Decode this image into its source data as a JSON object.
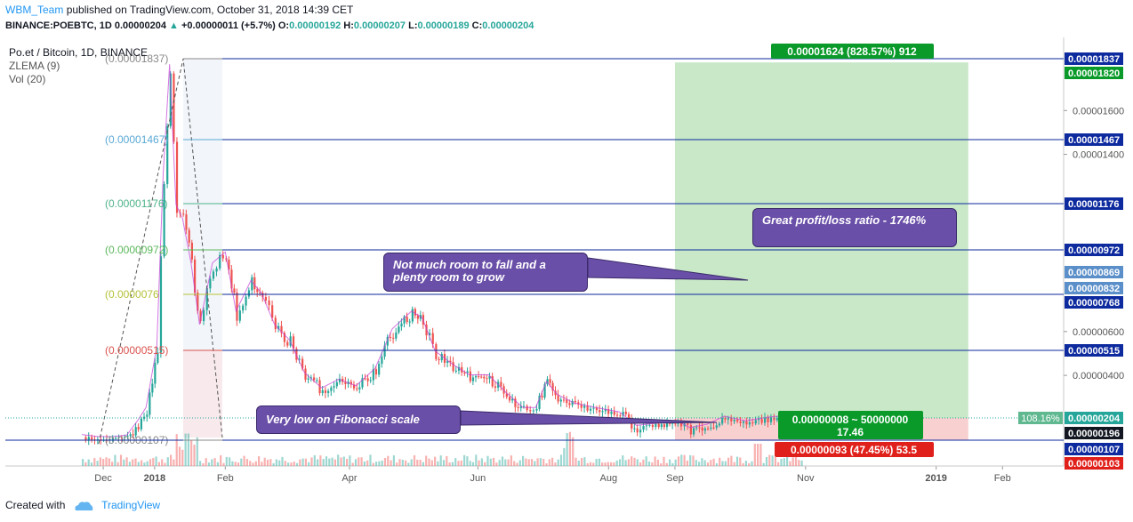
{
  "header": {
    "author": "WBM_Team",
    "published": "published on TradingView.com, October 31, 2018 14:39 CET",
    "symbol": "BINANCE:POEBTC, 1D",
    "last": "0.00000204",
    "change": "+0.00000011 (+5.7%)",
    "o_label": "O:",
    "o_value": "0.00000192",
    "h_label": "H:",
    "h_value": "0.00000207",
    "l_label": "L:",
    "l_value": "0.00000189",
    "c_label": "C:",
    "c_value": "0.00000204"
  },
  "legend": {
    "title": "Po.et / Bitcoin, 1D, BINANCE",
    "ind1": "ZLEMA (9)",
    "ind2": "Vol (20)"
  },
  "footer": {
    "created_with": "Created with",
    "brand": "TradingView"
  },
  "notes": {
    "n1": "Not much room to fall and a plenty room to grow",
    "n2": "Great profit/loss ratio - 1746%",
    "n3": "Very low on Fibonacci scale"
  },
  "position": {
    "target_label": "0.00001624 (828.57%) 912",
    "center_label_1": "0.00000008 ~ 50000000",
    "center_label_2": "17.46",
    "stop_label": "0.00000093 (47.45%) 53.5",
    "pct_label": "108.16%"
  },
  "colors": {
    "up": "#26a69a",
    "down": "#ef5350",
    "fib_line": "#0d2a9e",
    "profit_zone": "#c8e8c8",
    "loss_zone": "#f8d0d0",
    "note_bg": "#6a4fa8",
    "tag_blue": "#0d2a9e",
    "tag_green": "#0a9a2a",
    "tag_red": "#e0201a"
  },
  "chart_data": {
    "type": "candlestick",
    "title": "Po.et / Bitcoin, 1D, BINANCE",
    "x_ticks": [
      "Dec",
      "2018",
      "Feb",
      "Apr",
      "Jun",
      "Aug",
      "Sep",
      "Nov",
      "2019",
      "Feb"
    ],
    "y_ticks": [
      "0.00001600",
      "0.00001400",
      "0.00000600",
      "0.00000400"
    ],
    "y_range": [
      8.6e-07,
      1.98e-05
    ],
    "fib_levels": [
      {
        "label": "(0.00001837)",
        "value": 1.837e-05,
        "color": "#888888"
      },
      {
        "label": "(0.00001467)",
        "value": 1.467e-05,
        "color": "#5aa9d6"
      },
      {
        "label": "(0.00001176)",
        "value": 1.176e-05,
        "color": "#4fb38a"
      },
      {
        "label": "(0.00000972)",
        "value": 9.72e-06,
        "color": "#5cb85c"
      },
      {
        "label": "(0.0000076",
        "value": 7.68e-06,
        "color": "#b5c23a"
      },
      {
        "label": "(0.00000515)",
        "value": 5.15e-06,
        "color": "#d9534f"
      },
      {
        "label": "(0.00000107)",
        "value": 1.07e-06,
        "color": "#888888"
      }
    ],
    "price_tags": [
      {
        "label": "0.00001837",
        "value": 1.837e-05,
        "color": "#0d2a9e"
      },
      {
        "label": "0.00001820",
        "value": 1.82e-05,
        "color": "#0a9a2a"
      },
      {
        "label": "0.00001467",
        "value": 1.467e-05,
        "color": "#0d2a9e"
      },
      {
        "label": "0.00001176",
        "value": 1.176e-05,
        "color": "#0d2a9e"
      },
      {
        "label": "0.00000972",
        "value": 9.72e-06,
        "color": "#0d2a9e"
      },
      {
        "label": "0.00000869",
        "value": 8.69e-06,
        "color": "#5b8fc9"
      },
      {
        "label": "0.00000832",
        "value": 8.32e-06,
        "color": "#5b8fc9"
      },
      {
        "label": "0.00000768",
        "value": 7.68e-06,
        "color": "#0d2a9e"
      },
      {
        "label": "0.00000515",
        "value": 5.15e-06,
        "color": "#0d2a9e"
      },
      {
        "label": "0.00000204",
        "value": 2.04e-06,
        "color": "#26a69a"
      },
      {
        "label": "0.00000196",
        "value": 1.96e-06,
        "color": "#131722"
      },
      {
        "label": "0.00000107",
        "value": 1.07e-06,
        "color": "#0d2a9e"
      },
      {
        "label": "0.00000103",
        "value": 1.03e-06,
        "color": "#e0201a"
      }
    ],
    "price_path": [
      [
        "2017-11-28",
        1.2e-06
      ],
      [
        "2017-12-05",
        1.12e-06
      ],
      [
        "2017-12-12",
        1.1e-06
      ],
      [
        "2017-12-19",
        1.18e-06
      ],
      [
        "2017-12-24",
        1.8e-06
      ],
      [
        "2017-12-28",
        2.4e-06
      ],
      [
        "2018-01-02",
        5.2e-06
      ],
      [
        "2018-01-05",
        1.3e-05
      ],
      [
        "2018-01-08",
        1.8e-05
      ],
      [
        "2018-01-11",
        1.16e-05
      ],
      [
        "2018-01-14",
        1.1e-05
      ],
      [
        "2018-01-18",
        9e-06
      ],
      [
        "2018-01-22",
        6.2e-06
      ],
      [
        "2018-01-28",
        9e-06
      ],
      [
        "2018-02-03",
        9.5e-06
      ],
      [
        "2018-02-08",
        6.8e-06
      ],
      [
        "2018-02-15",
        8.2e-06
      ],
      [
        "2018-02-20",
        7.6e-06
      ],
      [
        "2018-02-26",
        6.2e-06
      ],
      [
        "2018-03-05",
        5.5e-06
      ],
      [
        "2018-03-12",
        4e-06
      ],
      [
        "2018-03-20",
        3.3e-06
      ],
      [
        "2018-03-28",
        3.7e-06
      ],
      [
        "2018-04-05",
        3.4e-06
      ],
      [
        "2018-04-14",
        4.2e-06
      ],
      [
        "2018-04-22",
        6e-06
      ],
      [
        "2018-05-01",
        6.8e-06
      ],
      [
        "2018-05-06",
        6.5e-06
      ],
      [
        "2018-05-12",
        5e-06
      ],
      [
        "2018-05-20",
        4.4e-06
      ],
      [
        "2018-05-28",
        3.9e-06
      ],
      [
        "2018-06-06",
        3.9e-06
      ],
      [
        "2018-06-14",
        3.1e-06
      ],
      [
        "2018-06-22",
        2.4e-06
      ],
      [
        "2018-06-28",
        2.4e-06
      ],
      [
        "2018-07-03",
        3.6e-06
      ],
      [
        "2018-07-08",
        3e-06
      ],
      [
        "2018-07-16",
        2.6e-06
      ],
      [
        "2018-07-26",
        2.4e-06
      ],
      [
        "2018-08-06",
        2.2e-06
      ],
      [
        "2018-08-14",
        1.6e-06
      ],
      [
        "2018-08-24",
        1.7e-06
      ],
      [
        "2018-09-02",
        1.8e-06
      ],
      [
        "2018-09-08",
        1.5e-06
      ],
      [
        "2018-09-16",
        1.65e-06
      ],
      [
        "2018-09-24",
        2e-06
      ],
      [
        "2018-10-04",
        1.8e-06
      ],
      [
        "2018-10-14",
        1.95e-06
      ],
      [
        "2018-10-24",
        2.05e-06
      ],
      [
        "2018-10-31",
        2.04e-06
      ]
    ]
  }
}
